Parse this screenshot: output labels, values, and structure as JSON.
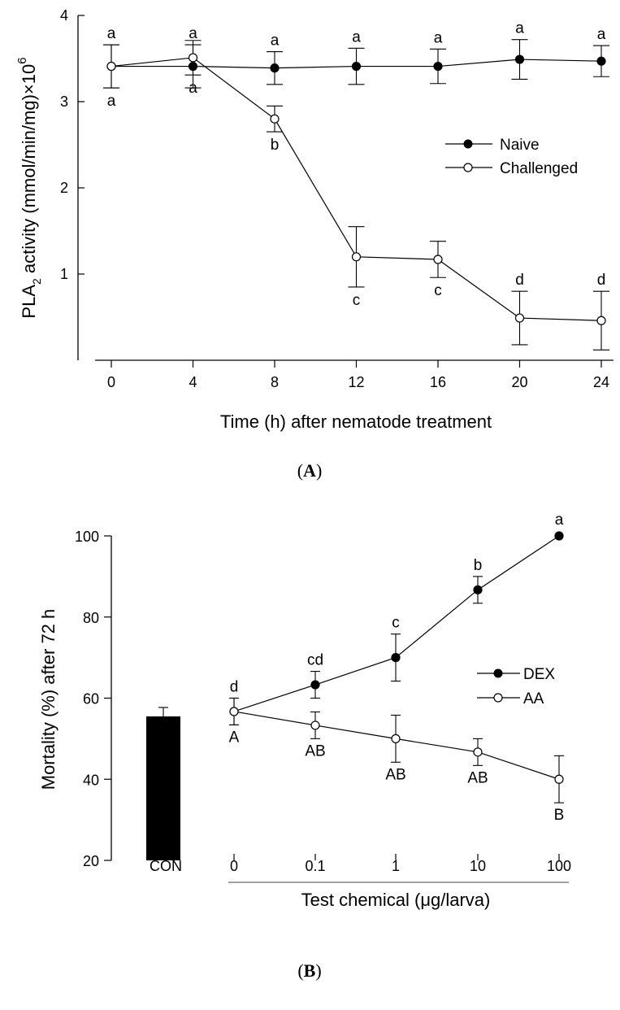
{
  "chart_data": [
    {
      "panel": "A",
      "panel_label": {
        "open": "(",
        "letter": "A",
        "close": ")"
      },
      "type": "line",
      "xlabel": "Time (h) after nematode treatment",
      "ylabel": {
        "prefix": "PLA",
        "sub": "2",
        "middle": " activity (mmol/min/mg)×10",
        "sup": "6"
      },
      "x": [
        0,
        4,
        8,
        12,
        16,
        20,
        24
      ],
      "xlim": [
        -1.5,
        25
      ],
      "ylim": [
        0,
        4
      ],
      "x_ticks": [
        "0",
        "4",
        "8",
        "12",
        "16",
        "20",
        "24"
      ],
      "y_ticks": [
        "1",
        "2",
        "3",
        "4"
      ],
      "legend": {
        "position": "right",
        "entries": [
          "Naive",
          "Challenged"
        ]
      },
      "series": [
        {
          "name": "Naive",
          "marker": "filled-circle",
          "values": [
            3.41,
            3.41,
            3.39,
            3.41,
            3.41,
            3.49,
            3.47
          ],
          "errors": [
            0.25,
            0.25,
            0.19,
            0.21,
            0.2,
            0.23,
            0.18
          ],
          "letters": [
            "a",
            "a",
            "a",
            "a",
            "a",
            "a",
            "a"
          ],
          "letter_position": [
            "above",
            "above",
            "above",
            "above",
            "above",
            "above",
            "above"
          ]
        },
        {
          "name": "Challenged",
          "marker": "open-circle",
          "values": [
            3.41,
            3.51,
            2.8,
            1.2,
            1.17,
            0.49,
            0.46
          ],
          "errors": [
            0.25,
            0.2,
            0.15,
            0.35,
            0.21,
            0.31,
            0.34
          ],
          "letters": [
            "a",
            "a",
            "b",
            "c",
            "c",
            "d",
            "d"
          ],
          "letter_position": [
            "below",
            "below",
            "below",
            "below",
            "below",
            "above",
            "above"
          ]
        }
      ]
    },
    {
      "panel": "B",
      "panel_label": {
        "open": "(",
        "letter": "B",
        "close": ")"
      },
      "type": "line",
      "xlabel": "Test chemical (μg/larva)",
      "ylabel": "Mortality (%) after 72 h",
      "categories": [
        "0",
        "0.1",
        "1",
        "10",
        "100"
      ],
      "ylim": [
        20,
        100
      ],
      "y_ticks": [
        "20",
        "40",
        "60",
        "80",
        "100"
      ],
      "legend": {
        "position": "right",
        "entries": [
          "DEX",
          "AA"
        ]
      },
      "control_bar": {
        "label": "CON",
        "value": 55.5,
        "error": 2.2
      },
      "series": [
        {
          "name": "DEX",
          "marker": "filled-circle",
          "values": [
            56.7,
            63.3,
            70.0,
            86.7,
            100.0
          ],
          "errors": [
            3.3,
            3.3,
            5.8,
            3.3,
            0
          ],
          "letters": [
            "d",
            "cd",
            "c",
            "b",
            "a"
          ]
        },
        {
          "name": "AA",
          "marker": "open-circle",
          "values": [
            56.7,
            53.3,
            50.0,
            46.7,
            40.0
          ],
          "errors": [
            3.3,
            3.3,
            5.8,
            3.3,
            5.8
          ],
          "letters": [
            "A",
            "AB",
            "AB",
            "AB",
            "B"
          ]
        }
      ]
    }
  ]
}
